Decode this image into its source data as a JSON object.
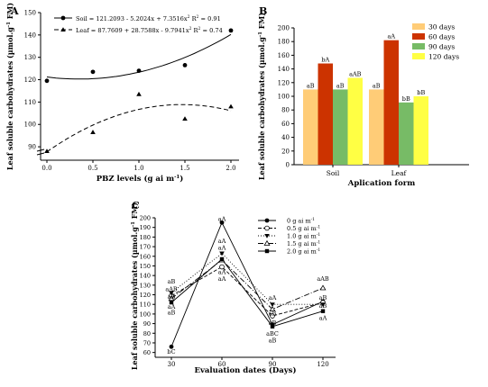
{
  "chart_data": [
    {
      "id": "A",
      "type": "scatter",
      "panel_label": "A",
      "xlabel": "PBZ levels (g ai m",
      "xlabel_sup": "-1",
      "xlabel_end": ")",
      "ylabel": "Leaf soluble carbohydrates (µmol.g",
      "ylabel_sup": "-1",
      "ylabel_end": " FM)",
      "x_ticks": [
        "0.0",
        "0.5",
        "1.0",
        "1.5",
        "2.0"
      ],
      "y_ticks": [
        "90",
        "100",
        "110",
        "120",
        "130",
        "140",
        "150"
      ],
      "xlim": [
        0,
        2
      ],
      "ylim": [
        84,
        150
      ],
      "series": [
        {
          "name": "Soil",
          "equation": "Soil = 121.2093 - 5.2024x + 7.3516x",
          "equation_tail": " R",
          "r2": " = 0.91",
          "marker": "circle",
          "line": "solid",
          "x": [
            0,
            0.5,
            1,
            1.5,
            2
          ],
          "y": [
            119.5,
            123.5,
            124,
            126.5,
            142
          ],
          "coef": [
            121.2093,
            -5.2024,
            7.3516
          ]
        },
        {
          "name": "Leaf",
          "equation": "Leaf = 87.7609 + 28.7588x - 9.7941x",
          "equation_tail": " R",
          "r2": " = 0.74",
          "marker": "triangle",
          "line": "dashed",
          "x": [
            0,
            0.5,
            1,
            1.5,
            2
          ],
          "y": [
            88,
            96.5,
            113.5,
            102.5,
            108
          ],
          "coef": [
            87.7609,
            28.7588,
            -9.7941
          ]
        }
      ]
    },
    {
      "id": "B",
      "type": "bar",
      "panel_label": "B",
      "xlabel": "Aplication form",
      "ylabel": "Leaf soluble carbohydrates (µmol.g",
      "ylabel_sup": "-1",
      "ylabel_end": " FM)",
      "categories": [
        "Soil",
        "Leaf"
      ],
      "y_ticks": [
        "0",
        "20",
        "40",
        "60",
        "80",
        "100",
        "120",
        "140",
        "160",
        "180",
        "200"
      ],
      "ylim": [
        0,
        200
      ],
      "legend_position": "top-right",
      "series": [
        {
          "name": "30 days",
          "color": "#FFCC77",
          "values": [
            110,
            110
          ],
          "labels": [
            "aB",
            "aB"
          ]
        },
        {
          "name": "60 days",
          "color": "#CC3300",
          "values": [
            148,
            182
          ],
          "labels": [
            "bA",
            "aA"
          ]
        },
        {
          "name": "90 days",
          "color": "#77BB66",
          "values": [
            110,
            91
          ],
          "labels": [
            "aB",
            "bB"
          ]
        },
        {
          "name": "120 days",
          "color": "#FFFF44",
          "values": [
            127,
            100
          ],
          "labels": [
            "aAB",
            "bB"
          ]
        }
      ]
    },
    {
      "id": "C",
      "type": "line",
      "panel_label": "C",
      "xlabel": "Evaluation dates (Days)",
      "ylabel": "Leaf soluble carbohydrates (µmol.g",
      "ylabel_sup": "-1",
      "ylabel_end": " FM)",
      "categories": [
        "30",
        "60",
        "90",
        "120"
      ],
      "y_ticks": [
        "60",
        "70",
        "80",
        "90",
        "100",
        "110",
        "120",
        "130",
        "140",
        "150",
        "160",
        "170",
        "180",
        "190",
        "200"
      ],
      "ylim": [
        55,
        200
      ],
      "legend_position": "top-right",
      "series": [
        {
          "name": "0 g ai m",
          "sup": "-1",
          "marker": "filled-circle",
          "dash": "",
          "values": [
            66,
            195,
            89,
            113
          ]
        },
        {
          "name": "0.5 g ai m",
          "sup": "-1",
          "marker": "open-circle",
          "dash": "4,2",
          "values": [
            119,
            149,
            98,
            112
          ]
        },
        {
          "name": "1.0 g ai m",
          "sup": "-1",
          "marker": "filled-triangle-down",
          "dash": "1,2",
          "values": [
            122,
            163,
            110,
            110
          ]
        },
        {
          "name": "1.5 g ai m",
          "sup": "-1",
          "marker": "open-triangle",
          "dash": "6,2,1,2",
          "values": [
            116,
            156,
            105,
            127
          ]
        },
        {
          "name": "2.0 g ai m",
          "sup": "-1",
          "marker": "filled-square",
          "dash": "",
          "values": [
            112,
            157,
            87,
            103
          ]
        }
      ],
      "annotations": [
        {
          "x": "30",
          "y": 61,
          "text": "bC"
        },
        {
          "x": "30",
          "y": 134,
          "text": "aB"
        },
        {
          "x": "30",
          "y": 126,
          "text": "aAB"
        },
        {
          "x": "30",
          "y": 118,
          "text": "aB"
        },
        {
          "x": "30",
          "y": 108,
          "text": "aA"
        },
        {
          "x": "30",
          "y": 102,
          "text": "aB"
        },
        {
          "x": "60",
          "y": 199,
          "text": "aA"
        },
        {
          "x": "60",
          "y": 176,
          "text": "aA"
        },
        {
          "x": "60",
          "y": 169,
          "text": "aA"
        },
        {
          "x": "60",
          "y": 144,
          "text": "aA"
        },
        {
          "x": "60",
          "y": 137,
          "text": "aA"
        },
        {
          "x": "90",
          "y": 117,
          "text": "aA"
        },
        {
          "x": "90",
          "y": 101,
          "text": "aB"
        },
        {
          "x": "90",
          "y": 91,
          "text": "aB"
        },
        {
          "x": "90",
          "y": 80,
          "text": "aBC"
        },
        {
          "x": "90",
          "y": 73,
          "text": "aB"
        },
        {
          "x": "120",
          "y": 137,
          "text": "aAB"
        },
        {
          "x": "120",
          "y": 117,
          "text": "aB"
        },
        {
          "x": "120",
          "y": 109,
          "text": "aB"
        },
        {
          "x": "120",
          "y": 96,
          "text": "aA"
        }
      ]
    }
  ]
}
